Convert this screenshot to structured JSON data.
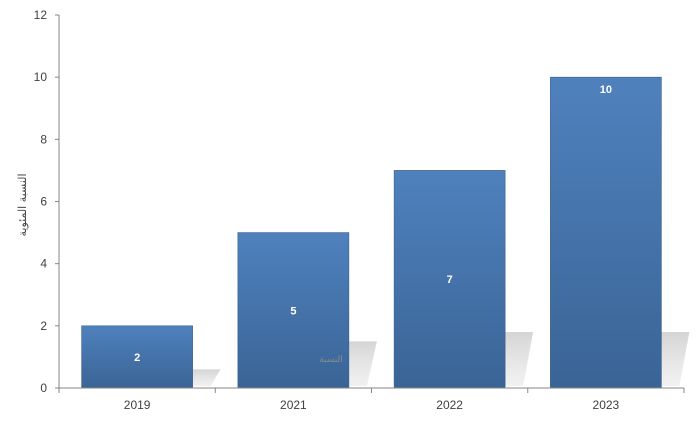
{
  "chart_data": {
    "type": "bar",
    "categories": [
      "2019",
      "2021",
      "2022",
      "2023"
    ],
    "values": [
      2,
      5,
      7,
      10
    ],
    "data_labels": [
      "2",
      "5",
      "7",
      "10"
    ],
    "title": "",
    "xlabel": "",
    "ylabel": "النسبة المئوية",
    "ylim": [
      0,
      12
    ],
    "yticks": [
      "0",
      "2",
      "4",
      "6",
      "8",
      "10",
      "12"
    ],
    "grid": false,
    "legend": "none",
    "colors": {
      "bar_top": "#4f81bd",
      "bar_bottom": "#3a6496",
      "axis": "#868686",
      "shadow": "#bfbfbf"
    },
    "watermark": "النسبة"
  }
}
